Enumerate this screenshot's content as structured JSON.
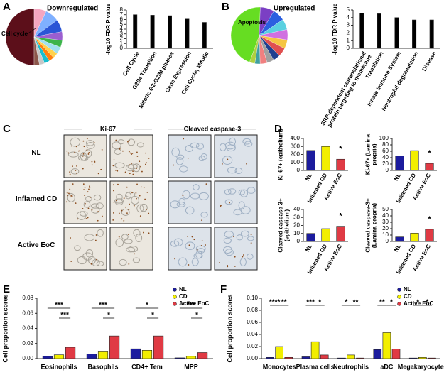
{
  "panels": [
    "A",
    "B",
    "C",
    "D",
    "E",
    "F"
  ],
  "panel_c": {
    "columns": [
      "Ki-67",
      "Cleaved caspase-3"
    ],
    "rows": [
      "NL",
      "Inflamed CD",
      "Active EoC"
    ]
  },
  "chart_data": [
    {
      "type": "pie",
      "title": "Downregulated",
      "categories": [
        "Cell cycle",
        null,
        null,
        null,
        null,
        null,
        null,
        null,
        null,
        null,
        null,
        null
      ],
      "values": [
        50,
        7,
        8,
        7,
        5,
        4,
        4,
        3,
        3,
        3,
        3,
        3
      ],
      "colors": [
        "#5c0f1a",
        "#f4a6c0",
        "#7fb0ff",
        "#2a55d6",
        "#9b5fd0",
        "#3cb44b",
        "#a0e0f0",
        "#ffd24d",
        "#ff7f0e",
        "#17becf",
        "#c7c7c7",
        "#8c564b"
      ]
    },
    {
      "type": "bar",
      "ylabel": "-log10 FDR P value",
      "categories": [
        "Cell Cycle",
        "G2/M Transition",
        "Mitotic G2-G2/M phases",
        "Gene Expression",
        "Cell Cycle, Mitotic"
      ],
      "values": [
        7.0,
        6.9,
        6.8,
        6.1,
        5.4
      ],
      "color": "#000000",
      "ylim": [
        0,
        8
      ],
      "yticks": [
        0,
        1,
        2,
        3,
        4,
        5,
        6,
        7,
        8
      ]
    },
    {
      "type": "pie",
      "title": "Upregulated",
      "categories": [
        "Apoptosis",
        null,
        null,
        null,
        null,
        null,
        null,
        null,
        null,
        null,
        null,
        null
      ],
      "values": [
        45,
        8,
        7,
        6,
        6,
        5,
        5,
        4,
        4,
        4,
        3,
        3
      ],
      "colors": [
        "#66dd22",
        "#7b3fc4",
        "#2b5fe0",
        "#5ad0e0",
        "#d070e0",
        "#f5c542",
        "#e05050",
        "#204090",
        "#a0a0a0",
        "#f08080",
        "#40a0a0",
        "#b0d040"
      ]
    },
    {
      "type": "bar",
      "ylabel": "-log10 FDR P value",
      "categories": [
        "SRP-dependent cotranslational protein targeting to membrane",
        "Translation",
        "Innate Immune System",
        "Neutrophil degranulation",
        "Disease"
      ],
      "values": [
        4.6,
        4.5,
        4.0,
        3.7,
        3.7
      ],
      "color": "#000000",
      "ylim": [
        0,
        5
      ],
      "yticks": [
        0,
        1,
        2,
        3,
        4,
        5
      ]
    },
    {
      "type": "bar",
      "ylabel": "Ki-67+ (epithelium)",
      "categories": [
        "NL",
        "Inflamed CD",
        "Active EoC"
      ],
      "values": [
        250,
        300,
        140
      ],
      "value_annotations": [
        null,
        null,
        "*"
      ],
      "colors": [
        "#1c1c9e",
        "#f2ee00",
        "#e03a44"
      ],
      "ylim": [
        0,
        400
      ],
      "yticks": [
        0,
        100,
        200,
        300,
        400
      ]
    },
    {
      "type": "bar",
      "ylabel": "Ki-67+ (Lamina propria)",
      "categories": [
        "NL",
        "Inflamed CD",
        "Active EoC"
      ],
      "values": [
        45,
        62,
        22
      ],
      "value_annotations": [
        null,
        null,
        "*"
      ],
      "colors": [
        "#1c1c9e",
        "#f2ee00",
        "#e03a44"
      ],
      "ylim": [
        0,
        100
      ],
      "yticks": [
        0,
        20,
        40,
        60,
        80,
        100
      ]
    },
    {
      "type": "bar",
      "ylabel": "Cleaved caspase-3+ (epithelium)",
      "categories": [
        "NL",
        "Inflamed CD",
        "Active EoC"
      ],
      "values": [
        10,
        16,
        19
      ],
      "value_annotations": [
        null,
        null,
        "*"
      ],
      "colors": [
        "#1c1c9e",
        "#f2ee00",
        "#e03a44"
      ],
      "ylim": [
        0,
        40
      ],
      "yticks": [
        0,
        10,
        20,
        30,
        40
      ]
    },
    {
      "type": "bar",
      "ylabel": "Cleaved caspase-3+ (Lamina propria)",
      "categories": [
        "NL",
        "Inflamed CD",
        "Active EoC"
      ],
      "values": [
        7,
        13,
        19
      ],
      "value_annotations": [
        null,
        null,
        "*"
      ],
      "colors": [
        "#1c1c9e",
        "#f2ee00",
        "#e03a44"
      ],
      "ylim": [
        0,
        50
      ],
      "yticks": [
        0,
        10,
        20,
        30,
        40,
        50
      ]
    },
    {
      "type": "bar",
      "ylabel": "Cell proportion scores",
      "categories": [
        "Eosinophils",
        "Basophils",
        "CD4+ Tem",
        "MPP"
      ],
      "series": [
        {
          "name": "NL",
          "color": "#1c1c9e",
          "values": [
            0.003,
            0.006,
            0.013,
            0.001
          ]
        },
        {
          "name": "CD",
          "color": "#f2ee00",
          "values": [
            0.005,
            0.009,
            0.011,
            0.003
          ]
        },
        {
          "name": "Active EoC",
          "color": "#e03a44",
          "values": [
            0.015,
            0.03,
            0.03,
            0.008
          ]
        }
      ],
      "significance": [
        [
          "***",
          "***"
        ],
        [
          "***",
          "*"
        ],
        [
          "*",
          "*"
        ],
        [
          "***",
          "*"
        ]
      ],
      "ylim": [
        0,
        0.08
      ],
      "yticks": [
        {
          "value": 0,
          "label": "0.00"
        },
        {
          "value": 0.02,
          "label": "0.02"
        },
        {
          "value": 0.04,
          "label": "0.04"
        },
        {
          "value": 0.06,
          "label": "0.06"
        },
        {
          "value": 0.08,
          "label": "0.08"
        }
      ],
      "legend": "upper right"
    },
    {
      "type": "bar",
      "ylabel": "Cell proportion scores",
      "categories": [
        "Monocytes",
        "Plasma cells",
        "Neutrophils",
        "aDC",
        "Megakaryocytes"
      ],
      "series": [
        {
          "name": "NL",
          "color": "#1c1c9e",
          "values": [
            0.002,
            0.003,
            0.001,
            0.015,
            0.001
          ]
        },
        {
          "name": "CD",
          "color": "#f2ee00",
          "values": [
            0.02,
            0.028,
            0.006,
            0.043,
            0.002
          ]
        },
        {
          "name": "Active EoC",
          "color": "#e03a44",
          "values": [
            0.002,
            0.006,
            0.001,
            0.016,
            0.001
          ]
        }
      ],
      "significance": [
        [
          "****",
          "**"
        ],
        [
          "***",
          "*"
        ],
        [
          "*",
          "**"
        ],
        [
          "**",
          "*"
        ],
        [
          "*",
          "*"
        ]
      ],
      "ylim": [
        0,
        0.1
      ],
      "yticks": [
        {
          "value": 0,
          "label": "0.00"
        },
        {
          "value": 0.02,
          "label": "0.02"
        },
        {
          "value": 0.04,
          "label": "0.04"
        },
        {
          "value": 0.06,
          "label": "0.06"
        },
        {
          "value": 0.08,
          "label": "0.08"
        },
        {
          "value": 0.1,
          "label": "0.10"
        }
      ],
      "legend": "upper right"
    }
  ]
}
